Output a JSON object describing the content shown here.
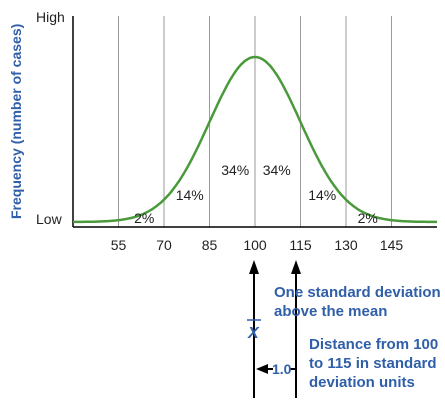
{
  "chart_data": {
    "type": "line",
    "title": "",
    "xlabel": "",
    "ylabel": "Frequency (number of cases)",
    "y_tick_labels": [
      "High",
      "Low"
    ],
    "x_ticks": [
      55,
      70,
      85,
      100,
      115,
      130,
      145
    ],
    "xlim": [
      40,
      160
    ],
    "mean": 100,
    "sd": 15,
    "grid": true,
    "curve": "normal",
    "band_labels": [
      {
        "x_center": 62.5,
        "text": "2%"
      },
      {
        "x_center": 77.5,
        "text": "14%"
      },
      {
        "x_center": 92.5,
        "text": "34%"
      },
      {
        "x_center": 107.5,
        "text": "34%"
      },
      {
        "x_center": 122.5,
        "text": "14%"
      },
      {
        "x_center": 137.5,
        "text": "2%"
      }
    ],
    "curve_color": "#4a9a3c",
    "accent_color": "#2f5fa8"
  },
  "annotations": {
    "mean_symbol": "X",
    "sd_note": [
      "One standard deviation",
      "above the mean"
    ],
    "distance_note": [
      "Distance from 100",
      "to 115 in standard",
      "deviation units"
    ],
    "distance_value": "1.0"
  }
}
